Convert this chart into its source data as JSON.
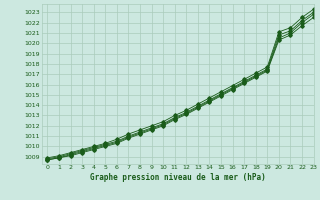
{
  "title": "Graphe pression niveau de la mer (hPa)",
  "xlim": [
    -0.5,
    23
  ],
  "ylim": [
    1008.3,
    1023.8
  ],
  "yticks": [
    1009,
    1010,
    1011,
    1012,
    1013,
    1014,
    1015,
    1016,
    1017,
    1018,
    1019,
    1020,
    1021,
    1022,
    1023
  ],
  "xticks": [
    0,
    1,
    2,
    3,
    4,
    5,
    6,
    7,
    8,
    9,
    10,
    11,
    12,
    13,
    14,
    15,
    16,
    17,
    18,
    19,
    20,
    21,
    22,
    23
  ],
  "bg_color": "#cce8e0",
  "grid_color": "#aaccbb",
  "line_color": "#1a5c1a",
  "title_color": "#1a5c1a",
  "x_hours": [
    0,
    1,
    2,
    3,
    4,
    5,
    6,
    7,
    8,
    9,
    10,
    11,
    12,
    13,
    14,
    15,
    16,
    17,
    18,
    19,
    20,
    21,
    22,
    23
  ],
  "series1": [
    1008.8,
    1009.0,
    1009.3,
    1009.6,
    1009.9,
    1010.2,
    1010.5,
    1011.0,
    1011.4,
    1011.8,
    1012.2,
    1012.8,
    1013.3,
    1013.9,
    1014.5,
    1015.1,
    1015.7,
    1016.3,
    1016.9,
    1017.5,
    1020.8,
    1021.2,
    1022.2,
    1023.0
  ],
  "series2": [
    1008.7,
    1008.9,
    1009.2,
    1009.5,
    1009.8,
    1010.1,
    1010.4,
    1010.9,
    1011.3,
    1011.7,
    1012.1,
    1012.7,
    1013.2,
    1013.8,
    1014.4,
    1015.0,
    1015.6,
    1016.2,
    1016.8,
    1017.4,
    1020.5,
    1021.0,
    1022.0,
    1022.8
  ],
  "series3": [
    1008.9,
    1009.1,
    1009.4,
    1009.7,
    1010.0,
    1010.3,
    1010.7,
    1011.2,
    1011.6,
    1012.0,
    1012.4,
    1013.0,
    1013.5,
    1014.1,
    1014.7,
    1015.3,
    1015.9,
    1016.5,
    1017.1,
    1017.7,
    1021.1,
    1021.5,
    1022.5,
    1023.3
  ],
  "series4": [
    1008.7,
    1008.9,
    1009.1,
    1009.4,
    1009.7,
    1010.0,
    1010.3,
    1010.8,
    1011.2,
    1011.6,
    1012.0,
    1012.6,
    1013.1,
    1013.7,
    1014.3,
    1014.9,
    1015.5,
    1016.1,
    1016.7,
    1017.3,
    1020.3,
    1020.8,
    1021.7,
    1022.5
  ]
}
